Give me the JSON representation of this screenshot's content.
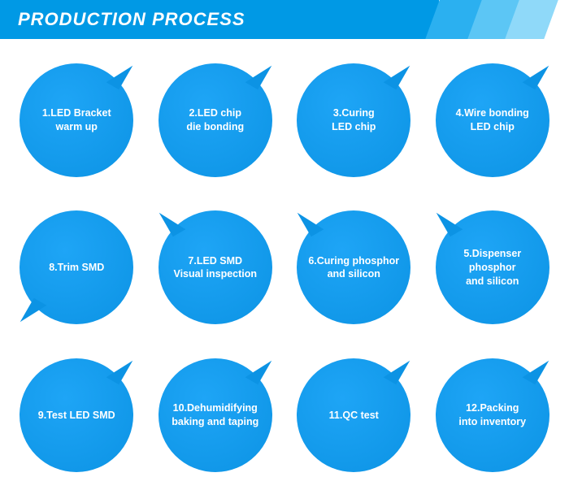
{
  "header": {
    "title": "PRODUCTION PROCESS",
    "bg_color": "#0099e5",
    "text_color": "#ffffff",
    "accent_colors": [
      "#2bb0f0",
      "#5cc6f5",
      "#8fd9f9"
    ]
  },
  "layout": {
    "cols": 4,
    "rows": 3,
    "bubble_diameter": 140,
    "bubble_color": "#0c93e4",
    "text_color": "#ffffff",
    "font_size": 12.5,
    "font_weight": 700,
    "background": "#ffffff"
  },
  "steps": [
    {
      "label": "1.LED Bracket\nwarm up",
      "tail": "ur"
    },
    {
      "label": "2.LED chip\ndie bonding",
      "tail": "ur"
    },
    {
      "label": "3.Curing\nLED chip",
      "tail": "ur"
    },
    {
      "label": "4.Wire bonding\nLED chip",
      "tail": "ur"
    },
    {
      "label": "8.Trim SMD",
      "tail": "dl"
    },
    {
      "label": "7.LED SMD\nVisual inspection",
      "tail": "ul"
    },
    {
      "label": "6.Curing phosphor\nand silicon",
      "tail": "ul"
    },
    {
      "label": "5.Dispenser\nphosphor\nand silicon",
      "tail": "ul"
    },
    {
      "label": "9.Test LED SMD",
      "tail": "ur"
    },
    {
      "label": "10.Dehumidifying\nbaking and taping",
      "tail": "ur"
    },
    {
      "label": "11.QC test",
      "tail": "ur"
    },
    {
      "label": "12.Packing\ninto inventory",
      "tail": "ur"
    }
  ]
}
